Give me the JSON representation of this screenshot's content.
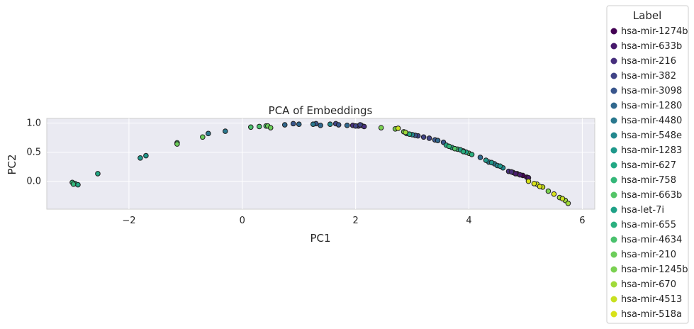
{
  "chart_data": {
    "type": "scatter",
    "title": "PCA of Embeddings",
    "xlabel": "PC1",
    "ylabel": "PC2",
    "xlim": [
      -3.45,
      6.22
    ],
    "ylim": [
      -0.48,
      1.08
    ],
    "xticks": [
      -2,
      0,
      2,
      4,
      6
    ],
    "yticks": [
      0.0,
      0.5,
      1.0
    ],
    "xtick_labels": [
      "−2",
      "0",
      "2",
      "4",
      "6"
    ],
    "ytick_labels": [
      "0.0",
      "0.5",
      "1.0"
    ],
    "grid": true,
    "legend": {
      "title": "Label",
      "placement": "outside-right"
    },
    "series": [
      {
        "name": "hsa-mir-1274b",
        "color": "#440154",
        "points": [
          [
            4.85,
            0.13
          ],
          [
            4.95,
            0.1
          ],
          [
            5.02,
            0.07
          ],
          [
            4.78,
            0.15
          ]
        ]
      },
      {
        "name": "hsa-mir-633b",
        "color": "#481a6c",
        "points": [
          [
            4.9,
            0.11
          ],
          [
            5.05,
            0.06
          ],
          [
            4.82,
            0.13
          ]
        ]
      },
      {
        "name": "hsa-mir-216",
        "color": "#472f7d",
        "points": [
          [
            1.95,
            0.96
          ],
          [
            2.05,
            0.95
          ],
          [
            2.1,
            0.96
          ],
          [
            2.15,
            0.94
          ],
          [
            4.7,
            0.17
          ],
          [
            4.75,
            0.16
          ]
        ]
      },
      {
        "name": "hsa-mir-382",
        "color": "#414487",
        "points": [
          [
            1.65,
            0.99
          ],
          [
            2.0,
            0.95
          ],
          [
            2.08,
            0.97
          ],
          [
            3.1,
            0.78
          ],
          [
            3.2,
            0.76
          ],
          [
            3.3,
            0.74
          ]
        ]
      },
      {
        "name": "hsa-mir-3098",
        "color": "#39568c",
        "points": [
          [
            0.9,
            0.99
          ],
          [
            1.3,
            0.99
          ],
          [
            1.7,
            0.97
          ],
          [
            3.05,
            0.79
          ],
          [
            3.4,
            0.71
          ],
          [
            3.55,
            0.67
          ]
        ]
      },
      {
        "name": "hsa-mir-1280",
        "color": "#31688e",
        "points": [
          [
            0.75,
            0.97
          ],
          [
            1.0,
            0.98
          ],
          [
            1.38,
            0.96
          ],
          [
            1.85,
            0.96
          ],
          [
            3.45,
            0.7
          ],
          [
            4.2,
            0.41
          ]
        ]
      },
      {
        "name": "hsa-mir-4480",
        "color": "#2a788e",
        "points": [
          [
            -0.3,
            0.86
          ],
          [
            -0.6,
            0.82
          ],
          [
            1.25,
            0.98
          ],
          [
            4.35,
            0.33
          ],
          [
            4.45,
            0.3
          ]
        ]
      },
      {
        "name": "hsa-mir-548e",
        "color": "#23888e",
        "points": [
          [
            1.55,
            0.98
          ],
          [
            3.0,
            0.8
          ],
          [
            4.5,
            0.27
          ],
          [
            4.6,
            0.23
          ]
        ]
      },
      {
        "name": "hsa-mir-1283",
        "color": "#1f988b",
        "points": [
          [
            -1.8,
            0.4
          ],
          [
            -1.7,
            0.44
          ],
          [
            4.3,
            0.36
          ],
          [
            4.4,
            0.32
          ],
          [
            4.55,
            0.26
          ]
        ]
      },
      {
        "name": "hsa-mir-627",
        "color": "#22a884",
        "points": [
          [
            -2.55,
            0.13
          ],
          [
            -2.95,
            -0.04
          ],
          [
            -2.9,
            -0.06
          ],
          [
            3.6,
            0.62
          ],
          [
            3.7,
            0.58
          ]
        ]
      },
      {
        "name": "hsa-mir-758",
        "color": "#35b779",
        "points": [
          [
            -3.0,
            -0.02
          ],
          [
            -2.98,
            -0.05
          ],
          [
            3.65,
            0.6
          ],
          [
            3.8,
            0.55
          ]
        ]
      },
      {
        "name": "hsa-mir-663b",
        "color": "#54c568",
        "points": [
          [
            3.75,
            0.56
          ],
          [
            3.9,
            0.52
          ],
          [
            4.0,
            0.48
          ]
        ]
      },
      {
        "name": "hsa-let-7i",
        "color": "#1fa187",
        "points": [
          [
            2.9,
            0.82
          ],
          [
            3.85,
            0.54
          ],
          [
            3.95,
            0.5
          ]
        ]
      },
      {
        "name": "hsa-mir-655",
        "color": "#2ab07f",
        "points": [
          [
            2.95,
            0.81
          ],
          [
            3.9,
            0.51
          ],
          [
            4.05,
            0.46
          ]
        ]
      },
      {
        "name": "hsa-mir-4634",
        "color": "#4ac16d",
        "points": [
          [
            0.15,
            0.93
          ],
          [
            0.3,
            0.94
          ],
          [
            0.42,
            0.95
          ],
          [
            -1.15,
            0.66
          ]
        ]
      },
      {
        "name": "hsa-mir-210",
        "color": "#6ccd5a",
        "points": [
          [
            0.45,
            0.95
          ],
          [
            0.5,
            0.92
          ],
          [
            -0.7,
            0.76
          ],
          [
            -1.15,
            0.64
          ]
        ]
      },
      {
        "name": "hsa-mir-1245b",
        "color": "#7ad151",
        "points": [
          [
            2.45,
            0.92
          ],
          [
            2.7,
            0.9
          ],
          [
            2.85,
            0.85
          ],
          [
            5.4,
            -0.17
          ]
        ]
      },
      {
        "name": "hsa-mir-670",
        "color": "#a0da39",
        "points": [
          [
            2.88,
            0.84
          ],
          [
            5.6,
            -0.28
          ],
          [
            5.7,
            -0.33
          ],
          [
            5.75,
            -0.38
          ]
        ]
      },
      {
        "name": "hsa-mir-4513",
        "color": "#c8e020",
        "points": [
          [
            2.75,
            0.91
          ],
          [
            5.2,
            -0.05
          ],
          [
            5.3,
            -0.1
          ],
          [
            5.65,
            -0.3
          ]
        ]
      },
      {
        "name": "hsa-mir-518a",
        "color": "#d8e219",
        "points": [
          [
            5.05,
            0.0
          ],
          [
            5.15,
            -0.04
          ],
          [
            5.25,
            -0.09
          ],
          [
            5.5,
            -0.22
          ]
        ]
      }
    ]
  }
}
